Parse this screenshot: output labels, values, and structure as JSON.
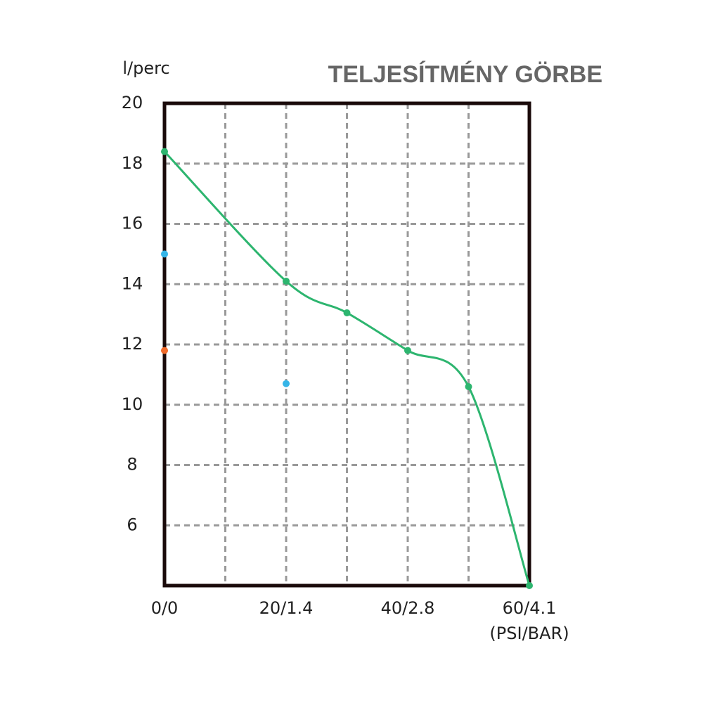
{
  "chart_data": {
    "type": "line",
    "title": "TELJESÍTMÉNY GÖRBE",
    "x_label": "(PSI/BAR)",
    "y_label": "l/perc",
    "xlim": [
      0,
      60
    ],
    "ylim": [
      4,
      20
    ],
    "xticks": [
      {
        "value": 0,
        "label": "0/0"
      },
      {
        "value": 10,
        "label": null
      },
      {
        "value": 20,
        "label": "20/1.4"
      },
      {
        "value": 30,
        "label": null
      },
      {
        "value": 40,
        "label": "40/2.8"
      },
      {
        "value": 50,
        "label": null
      },
      {
        "value": 60,
        "label": "60/4.1"
      }
    ],
    "yticks": [
      6,
      8,
      10,
      12,
      14,
      16,
      18,
      20
    ],
    "grid": true,
    "series": [
      {
        "color": "#2db56f",
        "style": "smooth-line",
        "x": [
          0,
          20,
          30,
          40,
          50,
          60
        ],
        "values": [
          18.4,
          14.1,
          13.05,
          11.8,
          10.6,
          4
        ]
      },
      {
        "color": "#35b5e8",
        "style": "points",
        "x": [
          0,
          20
        ],
        "values": [
          15,
          10.7
        ]
      },
      {
        "color": "#f26b2a",
        "style": "points",
        "x": [
          0
        ],
        "values": [
          11.8
        ]
      }
    ]
  }
}
